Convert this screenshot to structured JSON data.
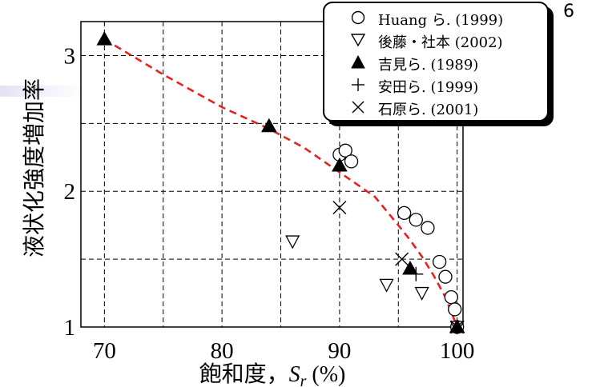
{
  "page_marker": "6",
  "chart_data": {
    "type": "scatter",
    "xlabel_prefix": "飽和度，",
    "xlabel_var": "S",
    "xlabel_sub": "r",
    "xlabel_suffix": " (%)",
    "ylabel": "液状化強度増加率",
    "xlim": [
      68,
      100.5
    ],
    "ylim": [
      1,
      3.25
    ],
    "x_ticks": [
      70,
      80,
      90,
      100
    ],
    "y_ticks": [
      1,
      2,
      3
    ],
    "grid": true,
    "legend_position": "top-right",
    "series": [
      {
        "name": "Huang ら. (1999)",
        "marker": "circle",
        "points": [
          [
            90,
            2.27
          ],
          [
            90.5,
            2.3
          ],
          [
            91,
            2.22
          ],
          [
            95.5,
            1.84
          ],
          [
            96.5,
            1.79
          ],
          [
            97.5,
            1.73
          ],
          [
            98.5,
            1.48
          ],
          [
            99,
            1.37
          ],
          [
            99.5,
            1.22
          ],
          [
            99.8,
            1.13
          ],
          [
            100,
            1.0
          ]
        ]
      },
      {
        "name": "後藤・社本 (2002)",
        "marker": "triangle-down",
        "points": [
          [
            86,
            1.63
          ],
          [
            94,
            1.31
          ],
          [
            97,
            1.25
          ],
          [
            100,
            1.0
          ]
        ]
      },
      {
        "name": "吉見ら. (1989)",
        "marker": "triangle-filled",
        "points": [
          [
            70,
            3.12
          ],
          [
            84,
            2.48
          ],
          [
            90,
            2.19
          ],
          [
            96,
            1.43
          ],
          [
            100,
            1.0
          ]
        ]
      },
      {
        "name": "安田ら. (1999)",
        "marker": "plus",
        "points": [
          [
            96.5,
            1.39
          ]
        ]
      },
      {
        "name": "石原ら. (2001)",
        "marker": "cross",
        "points": [
          [
            90,
            1.88
          ],
          [
            95.3,
            1.5
          ],
          [
            100,
            1.0
          ]
        ]
      }
    ],
    "trend_line": {
      "style": "red-dashed",
      "color": "#e8211d",
      "x": [
        70,
        75,
        80,
        84,
        87,
        90,
        93,
        95,
        96,
        97,
        98,
        99,
        100
      ],
      "y": [
        3.12,
        2.86,
        2.62,
        2.46,
        2.32,
        2.14,
        1.96,
        1.75,
        1.64,
        1.52,
        1.38,
        1.22,
        1.0
      ]
    }
  }
}
